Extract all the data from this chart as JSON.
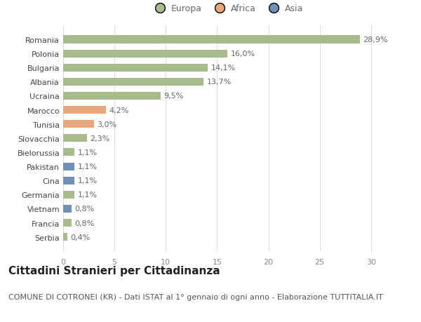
{
  "categories": [
    "Serbia",
    "Francia",
    "Vietnam",
    "Germania",
    "Cina",
    "Pakistan",
    "Bielorussia",
    "Slovacchia",
    "Tunisia",
    "Marocco",
    "Ucraina",
    "Albania",
    "Bulgaria",
    "Polonia",
    "Romania"
  ],
  "values": [
    0.4,
    0.8,
    0.8,
    1.1,
    1.1,
    1.1,
    1.1,
    2.3,
    3.0,
    4.2,
    9.5,
    13.7,
    14.1,
    16.0,
    28.9
  ],
  "labels": [
    "0,4%",
    "0,8%",
    "0,8%",
    "1,1%",
    "1,1%",
    "1,1%",
    "1,1%",
    "2,3%",
    "3,0%",
    "4,2%",
    "9,5%",
    "13,7%",
    "14,1%",
    "16,0%",
    "28,9%"
  ],
  "colors": [
    "#a8bb8a",
    "#a8bb8a",
    "#7090b8",
    "#a8bb8a",
    "#7090b8",
    "#7090b8",
    "#a8bb8a",
    "#a8bb8a",
    "#e8a87c",
    "#e8a87c",
    "#a8bb8a",
    "#a8bb8a",
    "#a8bb8a",
    "#a8bb8a",
    "#a8bb8a"
  ],
  "legend_colors": {
    "Europa": "#a8bb8a",
    "Africa": "#e8a87c",
    "Asia": "#7090b8"
  },
  "xlim": [
    0,
    32
  ],
  "xticks": [
    0,
    5,
    10,
    15,
    20,
    25,
    30
  ],
  "title": "Cittadini Stranieri per Cittadinanza",
  "subtitle": "COMUNE DI COTRONEI (KR) - Dati ISTAT al 1° gennaio di ogni anno - Elaborazione TUTTITALIA.IT",
  "background_color": "#ffffff",
  "bar_height": 0.55,
  "title_fontsize": 11,
  "subtitle_fontsize": 8,
  "label_fontsize": 8,
  "tick_fontsize": 8,
  "legend_fontsize": 9
}
